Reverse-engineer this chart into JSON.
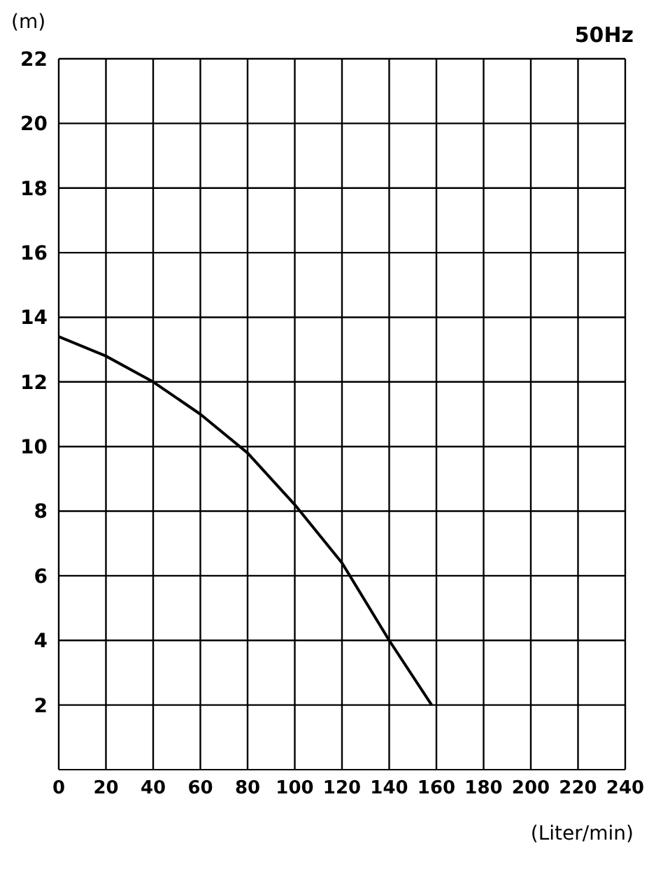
{
  "chart_data": {
    "type": "line",
    "title": "50Hz",
    "xlabel": "(Liter/min)",
    "ylabel": "(m)",
    "x": [
      0,
      20,
      40,
      60,
      80,
      100,
      120,
      140,
      158
    ],
    "series": [
      {
        "color": "#000000",
        "values": [
          13.4,
          12.8,
          12.0,
          11.0,
          9.8,
          8.2,
          6.4,
          4.0,
          2.0
        ]
      }
    ],
    "xlim": [
      0,
      240
    ],
    "xticks": [
      0,
      20,
      40,
      60,
      80,
      100,
      120,
      140,
      160,
      180,
      200,
      220,
      240
    ],
    "ylim": [
      0,
      22
    ],
    "yticks": [
      2,
      4,
      6,
      8,
      10,
      12,
      14,
      16,
      18,
      20,
      22
    ],
    "grid": true,
    "marker": "none",
    "line_style": "solid"
  }
}
